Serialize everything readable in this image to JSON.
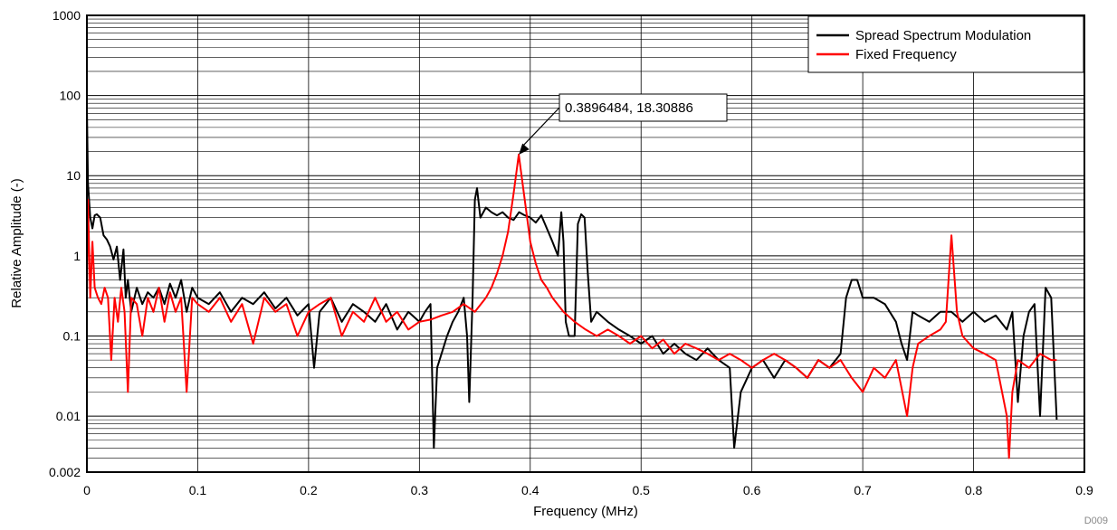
{
  "chart_data": {
    "type": "line",
    "title": "",
    "xlabel": "Frequency (MHz)",
    "ylabel": "Relative Amplitude (-)",
    "xlim": [
      0,
      0.9
    ],
    "ylim": [
      0.002,
      1000
    ],
    "yscale": "log",
    "grid": true,
    "legend_position": "top-right",
    "x_ticks": [
      "0",
      "0.1",
      "0.2",
      "0.3",
      "0.4",
      "0.5",
      "0.6",
      "0.7",
      "0.8",
      "0.9"
    ],
    "y_ticks": [
      "0.002",
      "0.01",
      "0.1",
      "1",
      "10",
      "100",
      "1000"
    ],
    "series": [
      {
        "name": "Spread Spectrum Modulation",
        "color": "#000000",
        "x": [
          0.0,
          0.001,
          0.003,
          0.005,
          0.007,
          0.009,
          0.012,
          0.015,
          0.018,
          0.021,
          0.024,
          0.027,
          0.03,
          0.033,
          0.035,
          0.037,
          0.04,
          0.045,
          0.05,
          0.055,
          0.06,
          0.065,
          0.07,
          0.075,
          0.08,
          0.085,
          0.09,
          0.095,
          0.1,
          0.11,
          0.12,
          0.13,
          0.14,
          0.15,
          0.16,
          0.17,
          0.18,
          0.19,
          0.2,
          0.205,
          0.21,
          0.22,
          0.23,
          0.24,
          0.25,
          0.26,
          0.27,
          0.28,
          0.29,
          0.3,
          0.305,
          0.31,
          0.313,
          0.316,
          0.32,
          0.325,
          0.33,
          0.335,
          0.34,
          0.343,
          0.345,
          0.348,
          0.35,
          0.352,
          0.355,
          0.36,
          0.365,
          0.37,
          0.375,
          0.38,
          0.385,
          0.39,
          0.395,
          0.4,
          0.405,
          0.41,
          0.415,
          0.42,
          0.425,
          0.428,
          0.43,
          0.432,
          0.435,
          0.44,
          0.443,
          0.446,
          0.449,
          0.452,
          0.455,
          0.46,
          0.47,
          0.48,
          0.49,
          0.5,
          0.51,
          0.52,
          0.53,
          0.54,
          0.55,
          0.56,
          0.57,
          0.58,
          0.584,
          0.59,
          0.6,
          0.61,
          0.62,
          0.63,
          0.64,
          0.65,
          0.66,
          0.67,
          0.68,
          0.685,
          0.69,
          0.695,
          0.7,
          0.71,
          0.72,
          0.73,
          0.735,
          0.74,
          0.745,
          0.75,
          0.76,
          0.77,
          0.78,
          0.79,
          0.8,
          0.81,
          0.82,
          0.83,
          0.835,
          0.84,
          0.845,
          0.85,
          0.855,
          0.86,
          0.865,
          0.87,
          0.875
        ],
        "values": [
          70,
          8,
          3,
          2.2,
          3.2,
          3.3,
          3.0,
          1.8,
          1.6,
          1.3,
          0.9,
          1.3,
          0.5,
          1.2,
          0.3,
          0.5,
          0.2,
          0.4,
          0.25,
          0.35,
          0.3,
          0.4,
          0.25,
          0.45,
          0.3,
          0.5,
          0.2,
          0.4,
          0.3,
          0.25,
          0.35,
          0.2,
          0.3,
          0.25,
          0.35,
          0.22,
          0.3,
          0.18,
          0.25,
          0.04,
          0.2,
          0.3,
          0.15,
          0.25,
          0.2,
          0.15,
          0.25,
          0.12,
          0.2,
          0.15,
          0.2,
          0.25,
          0.004,
          0.04,
          0.06,
          0.1,
          0.15,
          0.2,
          0.3,
          0.1,
          0.015,
          0.3,
          5,
          7,
          3,
          4,
          3.5,
          3.2,
          3.5,
          3.0,
          2.8,
          3.5,
          3.2,
          3.0,
          2.6,
          3.2,
          2.2,
          1.5,
          1.0,
          3.5,
          1.5,
          0.15,
          0.1,
          0.1,
          2.5,
          3.3,
          3.0,
          0.6,
          0.15,
          0.2,
          0.15,
          0.12,
          0.1,
          0.08,
          0.1,
          0.06,
          0.08,
          0.06,
          0.05,
          0.07,
          0.05,
          0.04,
          0.004,
          0.02,
          0.04,
          0.05,
          0.03,
          0.05,
          0.04,
          0.03,
          0.05,
          0.04,
          0.06,
          0.3,
          0.5,
          0.5,
          0.3,
          0.3,
          0.25,
          0.15,
          0.08,
          0.05,
          0.2,
          0.18,
          0.15,
          0.2,
          0.2,
          0.15,
          0.2,
          0.15,
          0.18,
          0.12,
          0.2,
          0.015,
          0.1,
          0.2,
          0.25,
          0.01,
          0.4,
          0.3,
          0.009
        ]
      },
      {
        "name": "Fixed Frequency",
        "color": "#ff0000",
        "x": [
          0.0,
          0.001,
          0.003,
          0.005,
          0.007,
          0.01,
          0.013,
          0.016,
          0.019,
          0.022,
          0.025,
          0.028,
          0.031,
          0.034,
          0.037,
          0.04,
          0.045,
          0.05,
          0.055,
          0.06,
          0.065,
          0.07,
          0.075,
          0.08,
          0.085,
          0.09,
          0.095,
          0.1,
          0.11,
          0.12,
          0.13,
          0.14,
          0.15,
          0.16,
          0.17,
          0.18,
          0.19,
          0.2,
          0.21,
          0.22,
          0.23,
          0.24,
          0.25,
          0.26,
          0.27,
          0.28,
          0.29,
          0.3,
          0.31,
          0.32,
          0.33,
          0.34,
          0.35,
          0.36,
          0.365,
          0.37,
          0.375,
          0.38,
          0.385,
          0.3896484,
          0.395,
          0.4,
          0.405,
          0.41,
          0.415,
          0.42,
          0.43,
          0.44,
          0.45,
          0.46,
          0.47,
          0.48,
          0.49,
          0.5,
          0.51,
          0.52,
          0.53,
          0.54,
          0.55,
          0.56,
          0.57,
          0.58,
          0.59,
          0.6,
          0.61,
          0.62,
          0.63,
          0.64,
          0.65,
          0.66,
          0.67,
          0.68,
          0.69,
          0.7,
          0.71,
          0.72,
          0.73,
          0.74,
          0.745,
          0.75,
          0.76,
          0.77,
          0.775,
          0.78,
          0.785,
          0.79,
          0.8,
          0.81,
          0.82,
          0.83,
          0.832,
          0.835,
          0.84,
          0.85,
          0.86,
          0.87,
          0.875
        ],
        "values": [
          0.3,
          5,
          0.3,
          1.5,
          0.4,
          0.3,
          0.25,
          0.4,
          0.3,
          0.05,
          0.3,
          0.15,
          0.4,
          0.2,
          0.02,
          0.3,
          0.25,
          0.1,
          0.3,
          0.2,
          0.4,
          0.15,
          0.35,
          0.2,
          0.3,
          0.02,
          0.3,
          0.25,
          0.2,
          0.3,
          0.15,
          0.25,
          0.08,
          0.3,
          0.2,
          0.25,
          0.1,
          0.2,
          0.25,
          0.3,
          0.1,
          0.2,
          0.15,
          0.3,
          0.15,
          0.2,
          0.12,
          0.15,
          0.16,
          0.18,
          0.2,
          0.25,
          0.2,
          0.3,
          0.4,
          0.6,
          1.0,
          2.0,
          6.0,
          18.30886,
          5.0,
          1.5,
          0.8,
          0.5,
          0.4,
          0.3,
          0.2,
          0.15,
          0.12,
          0.1,
          0.12,
          0.1,
          0.08,
          0.1,
          0.07,
          0.09,
          0.06,
          0.08,
          0.07,
          0.06,
          0.05,
          0.06,
          0.05,
          0.04,
          0.05,
          0.06,
          0.05,
          0.04,
          0.03,
          0.05,
          0.04,
          0.05,
          0.03,
          0.02,
          0.04,
          0.03,
          0.05,
          0.01,
          0.04,
          0.08,
          0.1,
          0.12,
          0.15,
          1.8,
          0.2,
          0.1,
          0.07,
          0.06,
          0.05,
          0.01,
          0.003,
          0.02,
          0.05,
          0.04,
          0.06,
          0.05,
          0.05
        ]
      }
    ],
    "annotation": {
      "text": "0.3896484, 18.30886",
      "x": 0.3896484,
      "y": 18.30886
    },
    "footer_label": "D009"
  }
}
